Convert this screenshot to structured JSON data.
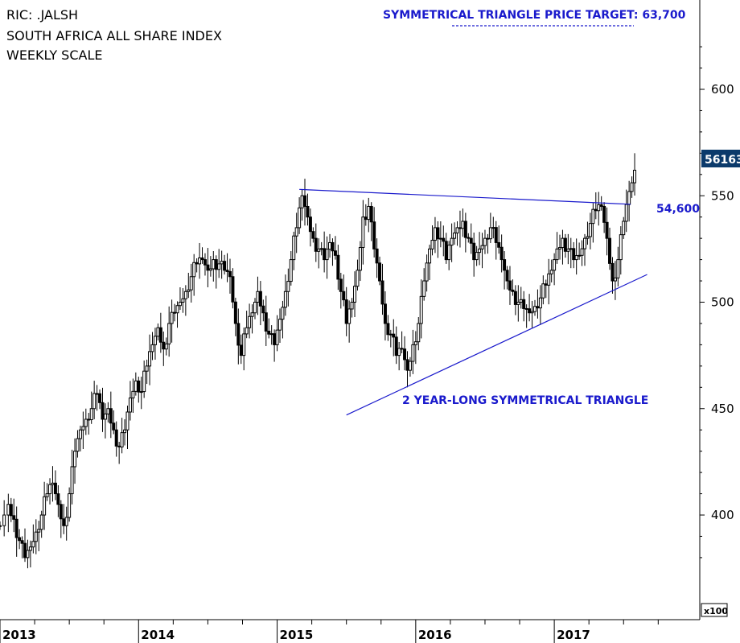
{
  "header": {
    "ric": "RIC: .JALSH",
    "name": "SOUTH AFRICA ALL SHARE INDEX",
    "scale": "WEEKLY SCALE"
  },
  "annotations": {
    "price_target": "SYMMETRICAL TRIANGLE PRICE TARGET: 63,700",
    "resistance_label": "54,600",
    "pattern_label": "2 YEAR-LONG SYMMETRICAL TRIANGLE",
    "last_price": "56163",
    "unit": "x100"
  },
  "colors": {
    "candle": "#000000",
    "trendline": "#1a1acc",
    "annotation_text": "#1a1acc",
    "last_price_box": "#0b3a6b",
    "axis": "#000000"
  },
  "chart_data": {
    "type": "candlestick",
    "title": "SOUTH AFRICA ALL SHARE INDEX",
    "frequency": "weekly",
    "y_unit_multiplier": "x100",
    "ylim": [
      370,
      600
    ],
    "y_ticks": [
      400,
      450,
      500,
      550,
      600
    ],
    "x_ticks": [
      "2013",
      "2014",
      "2015",
      "2016",
      "2017"
    ],
    "x_range": [
      2013.0,
      2018.05
    ],
    "last_price": 561.63,
    "trendlines": [
      {
        "name": "resistance",
        "points": [
          [
            2015.16,
            553
          ],
          [
            2017.55,
            546
          ]
        ]
      },
      {
        "name": "support",
        "points": [
          [
            2015.5,
            447
          ],
          [
            2017.67,
            513
          ]
        ]
      }
    ],
    "series": [
      {
        "name": "weekly close",
        "points": [
          [
            2013.0,
            395
          ],
          [
            2013.06,
            405
          ],
          [
            2013.1,
            398
          ],
          [
            2013.14,
            388
          ],
          [
            2013.18,
            380
          ],
          [
            2013.22,
            385
          ],
          [
            2013.26,
            392
          ],
          [
            2013.3,
            400
          ],
          [
            2013.34,
            410
          ],
          [
            2013.38,
            415
          ],
          [
            2013.42,
            405
          ],
          [
            2013.46,
            395
          ],
          [
            2013.5,
            410
          ],
          [
            2013.54,
            430
          ],
          [
            2013.58,
            440
          ],
          [
            2013.62,
            445
          ],
          [
            2013.66,
            450
          ],
          [
            2013.7,
            457
          ],
          [
            2013.74,
            445
          ],
          [
            2013.78,
            450
          ],
          [
            2013.82,
            440
          ],
          [
            2013.86,
            432
          ],
          [
            2013.9,
            440
          ],
          [
            2013.94,
            455
          ],
          [
            2013.98,
            463
          ],
          [
            2014.02,
            458
          ],
          [
            2014.06,
            470
          ],
          [
            2014.1,
            480
          ],
          [
            2014.14,
            488
          ],
          [
            2014.18,
            478
          ],
          [
            2014.22,
            490
          ],
          [
            2014.26,
            495
          ],
          [
            2014.3,
            500
          ],
          [
            2014.34,
            505
          ],
          [
            2014.38,
            512
          ],
          [
            2014.42,
            518
          ],
          [
            2014.46,
            520
          ],
          [
            2014.5,
            515
          ],
          [
            2014.54,
            520
          ],
          [
            2014.58,
            518
          ],
          [
            2014.62,
            515
          ],
          [
            2014.66,
            512
          ],
          [
            2014.7,
            490
          ],
          [
            2014.74,
            475
          ],
          [
            2014.78,
            488
          ],
          [
            2014.82,
            495
          ],
          [
            2014.86,
            505
          ],
          [
            2014.9,
            495
          ],
          [
            2014.94,
            485
          ],
          [
            2014.98,
            480
          ],
          [
            2015.02,
            492
          ],
          [
            2015.06,
            505
          ],
          [
            2015.1,
            520
          ],
          [
            2015.14,
            535
          ],
          [
            2015.18,
            550
          ],
          [
            2015.22,
            540
          ],
          [
            2015.26,
            530
          ],
          [
            2015.3,
            525
          ],
          [
            2015.34,
            520
          ],
          [
            2015.38,
            528
          ],
          [
            2015.42,
            522
          ],
          [
            2015.46,
            505
          ],
          [
            2015.5,
            490
          ],
          [
            2015.54,
            500
          ],
          [
            2015.58,
            515
          ],
          [
            2015.62,
            540
          ],
          [
            2015.66,
            545
          ],
          [
            2015.7,
            525
          ],
          [
            2015.74,
            510
          ],
          [
            2015.78,
            490
          ],
          [
            2015.82,
            485
          ],
          [
            2015.86,
            475
          ],
          [
            2015.9,
            478
          ],
          [
            2015.94,
            468
          ],
          [
            2015.98,
            480
          ],
          [
            2016.02,
            490
          ],
          [
            2016.06,
            510
          ],
          [
            2016.1,
            525
          ],
          [
            2016.14,
            535
          ],
          [
            2016.18,
            530
          ],
          [
            2016.22,
            520
          ],
          [
            2016.26,
            530
          ],
          [
            2016.3,
            535
          ],
          [
            2016.34,
            538
          ],
          [
            2016.38,
            530
          ],
          [
            2016.42,
            520
          ],
          [
            2016.46,
            525
          ],
          [
            2016.5,
            530
          ],
          [
            2016.54,
            535
          ],
          [
            2016.58,
            528
          ],
          [
            2016.62,
            520
          ],
          [
            2016.66,
            510
          ],
          [
            2016.7,
            505
          ],
          [
            2016.74,
            500
          ],
          [
            2016.78,
            497
          ],
          [
            2016.82,
            495
          ],
          [
            2016.86,
            498
          ],
          [
            2016.9,
            502
          ],
          [
            2016.94,
            508
          ],
          [
            2016.98,
            515
          ],
          [
            2017.02,
            525
          ],
          [
            2017.06,
            530
          ],
          [
            2017.1,
            525
          ],
          [
            2017.14,
            520
          ],
          [
            2017.18,
            522
          ],
          [
            2017.22,
            530
          ],
          [
            2017.26,
            537
          ],
          [
            2017.3,
            543
          ],
          [
            2017.34,
            545
          ],
          [
            2017.38,
            530
          ],
          [
            2017.42,
            510
          ],
          [
            2017.46,
            520
          ],
          [
            2017.5,
            538
          ],
          [
            2017.54,
            552
          ],
          [
            2017.58,
            562
          ]
        ]
      }
    ]
  }
}
